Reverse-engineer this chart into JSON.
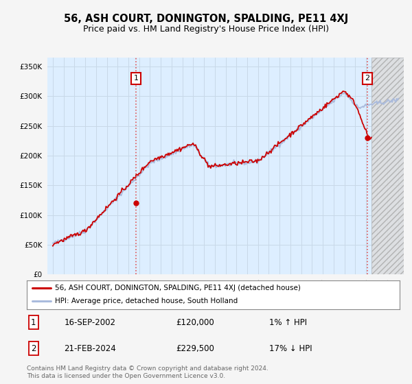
{
  "title": "56, ASH COURT, DONINGTON, SPALDING, PE11 4XJ",
  "subtitle": "Price paid vs. HM Land Registry's House Price Index (HPI)",
  "ytick_values": [
    0,
    50000,
    100000,
    150000,
    200000,
    250000,
    300000,
    350000
  ],
  "ylim": [
    0,
    365000
  ],
  "xlim_start": 1994.5,
  "xlim_end": 2027.5,
  "hpi_color": "#aabbdd",
  "price_color": "#cc0000",
  "background_color": "#ddeeff",
  "hatch_background": "#e8e8e8",
  "grid_color": "#c8d8e8",
  "transaction1_date": 2002.72,
  "transaction1_price": 120000,
  "transaction2_date": 2024.13,
  "transaction2_price": 229500,
  "legend_line1": "56, ASH COURT, DONINGTON, SPALDING, PE11 4XJ (detached house)",
  "legend_line2": "HPI: Average price, detached house, South Holland",
  "table_row1": [
    "1",
    "16-SEP-2002",
    "£120,000",
    "1% ↑ HPI"
  ],
  "table_row2": [
    "2",
    "21-FEB-2024",
    "£229,500",
    "17% ↓ HPI"
  ],
  "footnote": "Contains HM Land Registry data © Crown copyright and database right 2024.\nThis data is licensed under the Open Government Licence v3.0.",
  "hatch_start": 2024.5,
  "title_fontsize": 10.5,
  "subtitle_fontsize": 9
}
